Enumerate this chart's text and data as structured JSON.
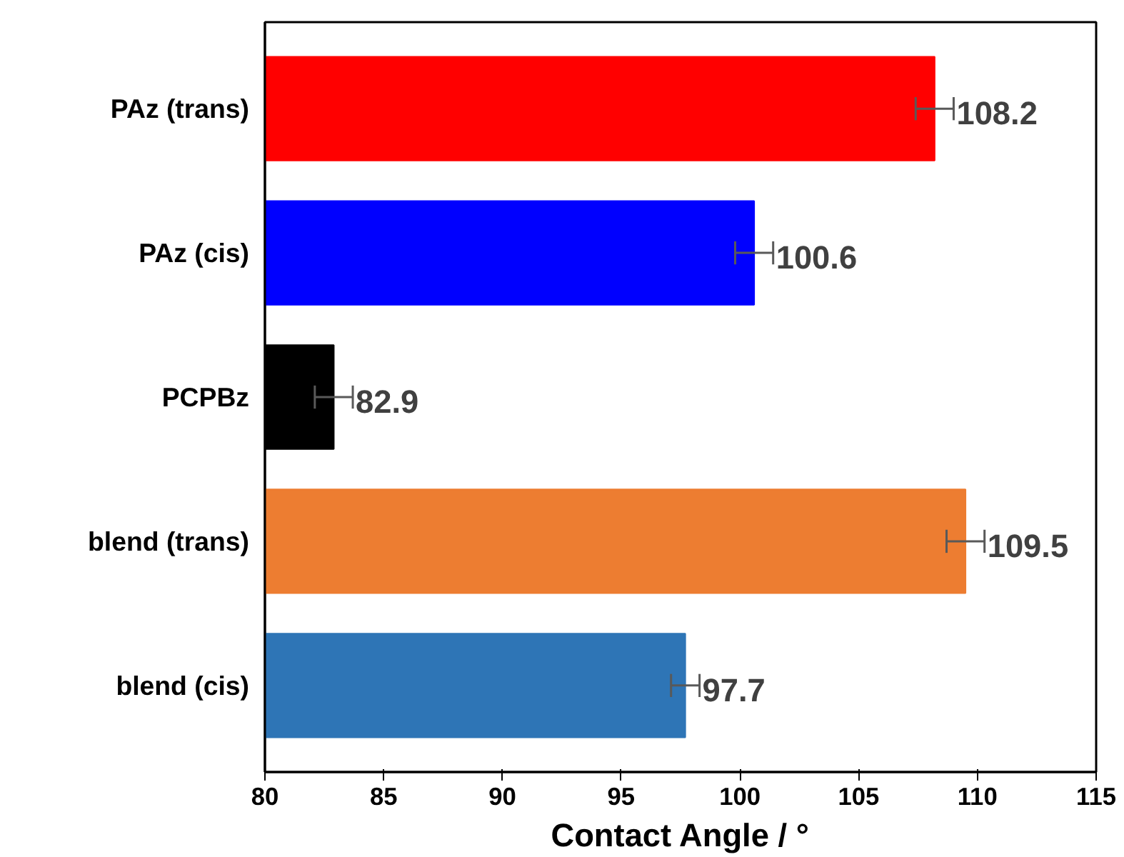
{
  "chart_data": {
    "type": "bar",
    "orientation": "horizontal",
    "xlabel": "Contact Angle / °",
    "categories": [
      "PAz (trans)",
      "PAz (cis)",
      "PCPBz",
      "blend (trans)",
      "blend (cis)"
    ],
    "values": [
      108.2,
      100.6,
      82.9,
      109.5,
      97.7
    ],
    "colors": [
      "#ff0000",
      "#0000ff",
      "#000000",
      "#ed7d31",
      "#2e75b6"
    ],
    "errors": [
      0.8,
      0.8,
      0.8,
      0.8,
      0.6
    ],
    "xlim": [
      80,
      115
    ],
    "xticks": [
      80,
      85,
      90,
      95,
      100,
      105,
      110,
      115
    ],
    "data_labels": true,
    "grid": false
  }
}
